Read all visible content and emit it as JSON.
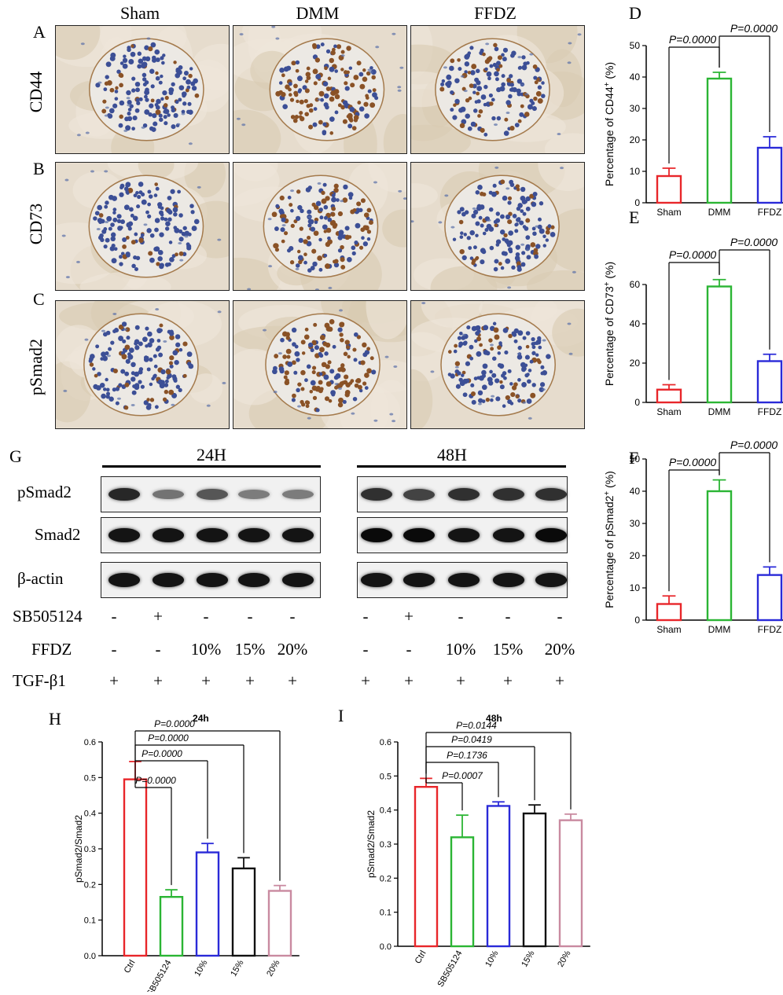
{
  "panel_letters": {
    "A": "A",
    "B": "B",
    "C": "C",
    "D": "D",
    "E": "E",
    "F": "F",
    "G": "G",
    "H": "H",
    "I": "I"
  },
  "ihc": {
    "columns": [
      "Sham",
      "DMM",
      "FFDZ"
    ],
    "rows": [
      "CD44",
      "CD73",
      "pSmad2"
    ]
  },
  "western": {
    "time_labels": [
      "24H",
      "48H"
    ],
    "proteins": [
      "pSmad2",
      "Smad2",
      "β-actin"
    ],
    "treatment_rows": [
      {
        "label": "SB505124",
        "values": [
          "-",
          "+",
          "-",
          "-",
          "-",
          "-",
          "+",
          "-",
          "-",
          "-"
        ]
      },
      {
        "label": "FFDZ",
        "values": [
          "-",
          "-",
          "10%",
          "15%",
          "20%",
          "-",
          "-",
          "10%",
          "15%",
          "20%"
        ]
      },
      {
        "label": "TGF-β1",
        "values": [
          "+",
          "+",
          "+",
          "+",
          "+",
          "+",
          "+",
          "+",
          "+",
          "+"
        ]
      }
    ],
    "band_intensity": {
      "pSmad2": [
        0.85,
        0.45,
        0.6,
        0.4,
        0.4,
        0.8,
        0.7,
        0.8,
        0.8,
        0.8
      ],
      "Smad2": [
        0.95,
        0.95,
        0.95,
        0.95,
        0.95,
        1.0,
        1.0,
        0.95,
        0.95,
        1.0
      ],
      "β-actin": [
        0.95,
        0.95,
        0.95,
        0.95,
        0.95,
        0.95,
        0.95,
        0.95,
        0.95,
        0.95
      ]
    }
  },
  "colors": {
    "sham": "#e8262a",
    "dmm": "#2bb534",
    "ffdz": "#2a2ad8",
    "ctrl": "#e8262a",
    "sb": "#2bb534",
    "p10": "#2a2ad8",
    "p15": "#111111",
    "p20": "#c98aa0"
  },
  "chart_data": [
    {
      "id": "D",
      "type": "bar",
      "categories": [
        "Sham",
        "DMM",
        "FFDZ"
      ],
      "values": [
        8.5,
        39.5,
        17.5
      ],
      "errors": [
        2.5,
        2.0,
        3.5
      ],
      "ylabel_main": "Percentage of CD44",
      "ylabel_sup": "+",
      "ylabel_unit": " (%)",
      "ylim": [
        0,
        50
      ],
      "yticks": [
        "0",
        "10",
        "20",
        "30",
        "40",
        "50"
      ],
      "comparisons": [
        {
          "from": "Sham",
          "to": "DMM",
          "label": "P=0.0000"
        },
        {
          "from": "DMM",
          "to": "FFDZ",
          "label": "P=0.0000"
        }
      ]
    },
    {
      "id": "E",
      "type": "bar",
      "categories": [
        "Sham",
        "DMM",
        "FFDZ"
      ],
      "values": [
        6.5,
        59.0,
        21.0
      ],
      "errors": [
        2.5,
        3.5,
        3.5
      ],
      "ylabel_main": "Percentage of CD73",
      "ylabel_sup": "+",
      "ylabel_unit": " (%)",
      "ylim": [
        0,
        80
      ],
      "yticks": [
        "0",
        "20",
        "40",
        "60"
      ],
      "comparisons": [
        {
          "from": "Sham",
          "to": "DMM",
          "label": "P=0.0000"
        },
        {
          "from": "DMM",
          "to": "FFDZ",
          "label": "P=0.0000"
        }
      ]
    },
    {
      "id": "F",
      "type": "bar",
      "categories": [
        "Sham",
        "DMM",
        "FFDZ"
      ],
      "values": [
        5.0,
        40.0,
        14.0
      ],
      "errors": [
        2.5,
        3.5,
        2.5
      ],
      "ylabel_main": "Percentage of pSmad2",
      "ylabel_sup": "+",
      "ylabel_unit": " (%)",
      "ylim": [
        0,
        50
      ],
      "yticks": [
        "0",
        "10",
        "20",
        "30",
        "40",
        "50"
      ],
      "comparisons": [
        {
          "from": "Sham",
          "to": "DMM",
          "label": "P=0.0000"
        },
        {
          "from": "DMM",
          "to": "FFDZ",
          "label": "P=0.0000"
        }
      ]
    },
    {
      "id": "H",
      "type": "bar",
      "title": "24h",
      "categories": [
        "Ctrl",
        "SB505124",
        "10%",
        "15%",
        "20%"
      ],
      "values": [
        0.495,
        0.165,
        0.29,
        0.245,
        0.182
      ],
      "errors": [
        0.05,
        0.02,
        0.025,
        0.03,
        0.015
      ],
      "ylabel": "pSmad2/Smad2",
      "ylim": [
        0,
        0.6
      ],
      "yticks": [
        "0.0",
        "0.1",
        "0.2",
        "0.3",
        "0.4",
        "0.5",
        "0.6"
      ],
      "comparisons": [
        {
          "from": "Ctrl",
          "to": "SB505124",
          "label": "P=0.0000"
        },
        {
          "from": "Ctrl",
          "to": "10%",
          "label": "P=0.0000"
        },
        {
          "from": "Ctrl",
          "to": "15%",
          "label": "P=0.0000"
        },
        {
          "from": "Ctrl",
          "to": "20%",
          "label": "P=0.0000"
        }
      ]
    },
    {
      "id": "I",
      "type": "bar",
      "title": "48h",
      "categories": [
        "Ctrl",
        "SB505124",
        "10%",
        "15%",
        "20%"
      ],
      "values": [
        0.468,
        0.32,
        0.412,
        0.39,
        0.37
      ],
      "errors": [
        0.025,
        0.065,
        0.012,
        0.025,
        0.018
      ],
      "ylabel": "pSmad2/Smad2",
      "ylim": [
        0,
        0.6
      ],
      "yticks": [
        "0.0",
        "0.1",
        "0.2",
        "0.3",
        "0.4",
        "0.5",
        "0.6"
      ],
      "comparisons": [
        {
          "from": "Ctrl",
          "to": "SB505124",
          "label": "P=0.0007"
        },
        {
          "from": "Ctrl",
          "to": "10%",
          "label": "P=0.1736"
        },
        {
          "from": "Ctrl",
          "to": "15%",
          "label": "P=0.0419"
        },
        {
          "from": "Ctrl",
          "to": "20%",
          "label": "P=0.0144"
        }
      ]
    }
  ]
}
